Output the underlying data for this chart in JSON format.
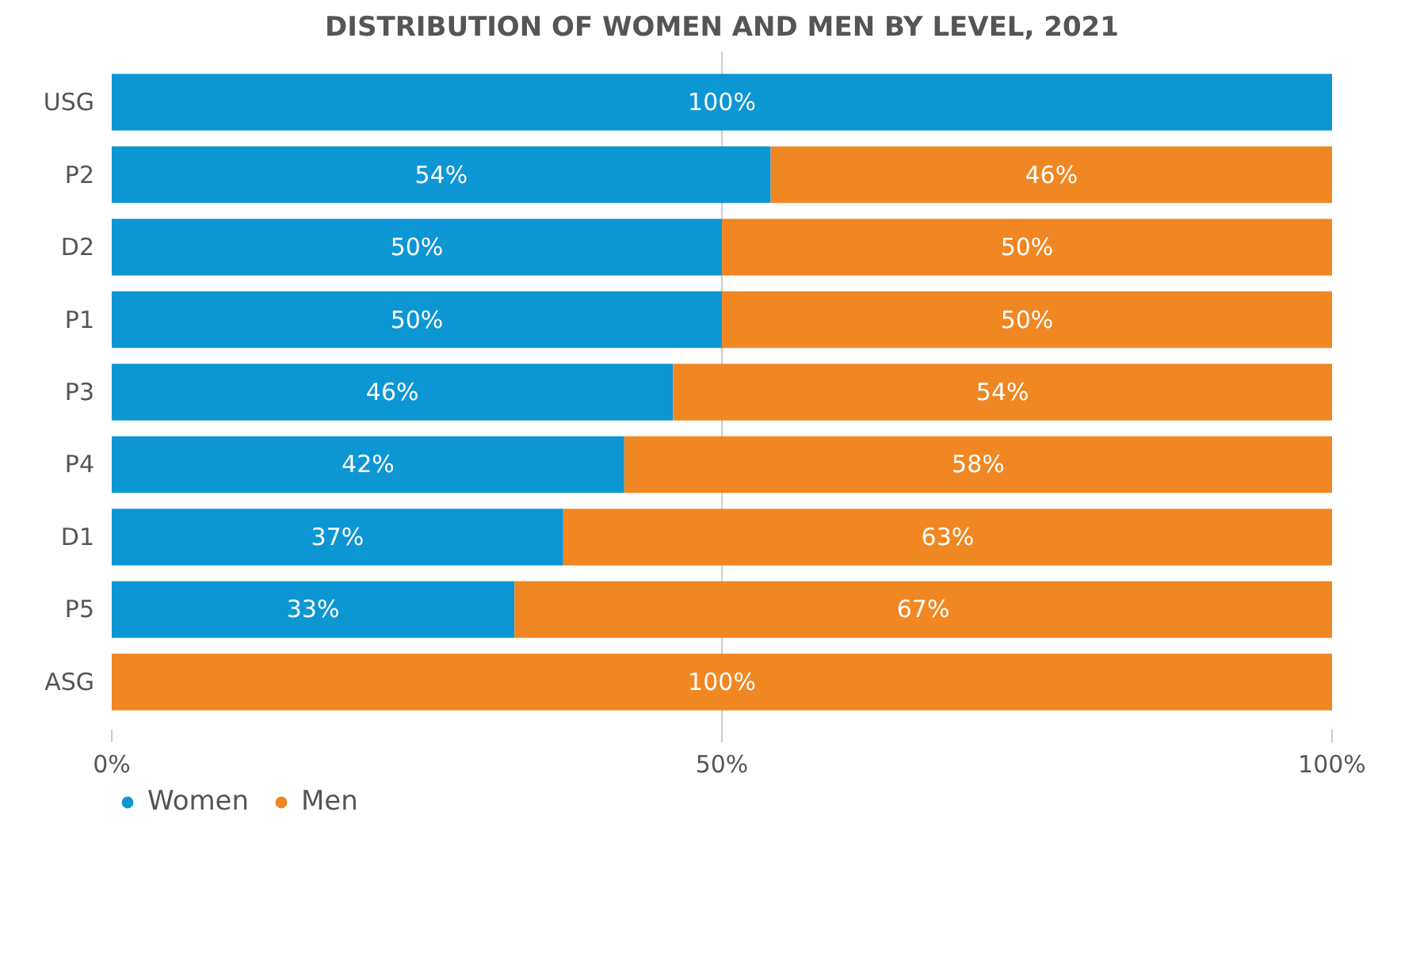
{
  "chart_data": {
    "type": "bar",
    "orientation": "horizontal",
    "stacked": true,
    "title": "DISTRIBUTION OF WOMEN AND MEN BY LEVEL, 2021",
    "categories": [
      "USG",
      "P2",
      "D2",
      "P1",
      "P3",
      "P4",
      "D1",
      "P5",
      "ASG"
    ],
    "series": [
      {
        "name": "Women",
        "color": "#0d96d4",
        "values": [
          100,
          54,
          50,
          50,
          46,
          42,
          37,
          33,
          0
        ],
        "value_labels": [
          "100%",
          "54%",
          "50%",
          "50%",
          "46%",
          "42%",
          "37%",
          "33%",
          null
        ]
      },
      {
        "name": "Men",
        "color": "#f08722",
        "values": [
          0,
          46,
          50,
          50,
          54,
          58,
          63,
          67,
          100
        ],
        "value_labels": [
          null,
          "46%",
          "50%",
          "50%",
          "54%",
          "58%",
          "63%",
          "67%",
          "100%"
        ]
      }
    ],
    "xlim": [
      0,
      100
    ],
    "xticks": [
      {
        "value": 0,
        "label": "0%"
      },
      {
        "value": 50,
        "label": "50%"
      },
      {
        "value": 100,
        "label": "100%"
      }
    ],
    "grid": "x",
    "legend": "bottom left"
  }
}
